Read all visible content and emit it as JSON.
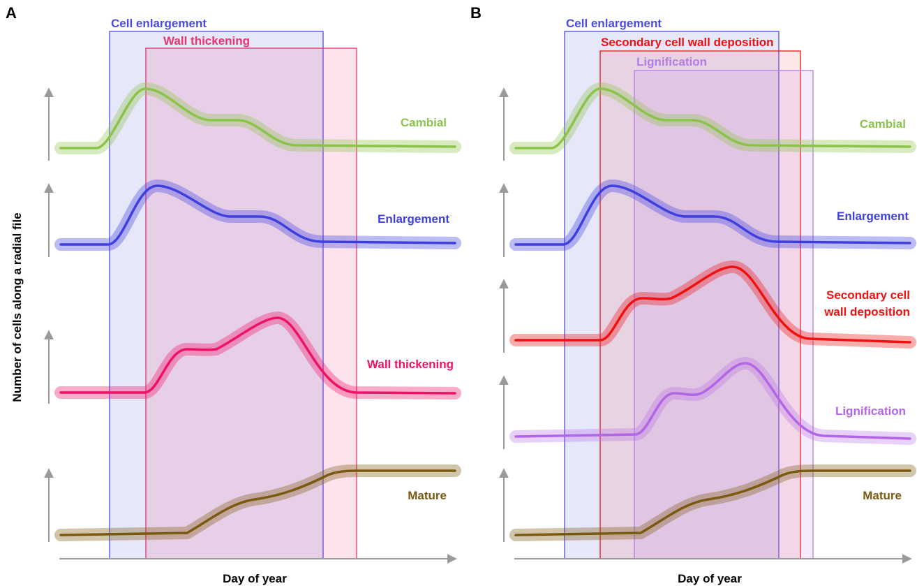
{
  "figure": {
    "y_axis_label": "Number of cells along a radial file",
    "x_axis_label": "Day of year"
  },
  "colors": {
    "cambial": "#8bc34a",
    "enlargement": "#3f3fe0",
    "wall_thickening": "#ee1166",
    "secondary_wall": "#ee1111",
    "lignification": "#b266e6",
    "mature": "#7a5a10",
    "axis": "#9a9a9a"
  },
  "panels": [
    {
      "letter": "A",
      "phases": [
        {
          "label": "Cell enlargement",
          "color": "#4a4ae6",
          "fill": "rgba(120,120,230,0.18)"
        },
        {
          "label": "Wall thickening",
          "color": "#e8336f",
          "fill": "rgba(238,80,140,0.16)"
        }
      ],
      "curves": [
        {
          "label": "Cambial",
          "color": "#8bc34a"
        },
        {
          "label": "Enlargement",
          "color": "#3f3fe0"
        },
        {
          "label": "Wall thickening",
          "color": "#ee1166"
        },
        {
          "label": "Mature",
          "color": "#7a5a10"
        }
      ]
    },
    {
      "letter": "B",
      "phases": [
        {
          "label": "Cell enlargement",
          "color": "#4a4ae6",
          "fill": "rgba(120,120,230,0.18)"
        },
        {
          "label": "Secondary cell wall deposition",
          "color": "#ee1111",
          "fill": "rgba(240,90,90,0.14)"
        },
        {
          "label": "Lignification",
          "color": "#b57be8",
          "fill": "rgba(190,130,235,0.16)"
        }
      ],
      "curves": [
        {
          "label": "Cambial",
          "color": "#8bc34a"
        },
        {
          "label": "Enlargement",
          "color": "#3f3fe0"
        },
        {
          "label_line1": "Secondary cell",
          "label_line2": "wall deposition",
          "color": "#ee1111"
        },
        {
          "label": "Lignification",
          "color": "#b266e6"
        },
        {
          "label": "Mature",
          "color": "#7a5a10"
        }
      ]
    }
  ]
}
